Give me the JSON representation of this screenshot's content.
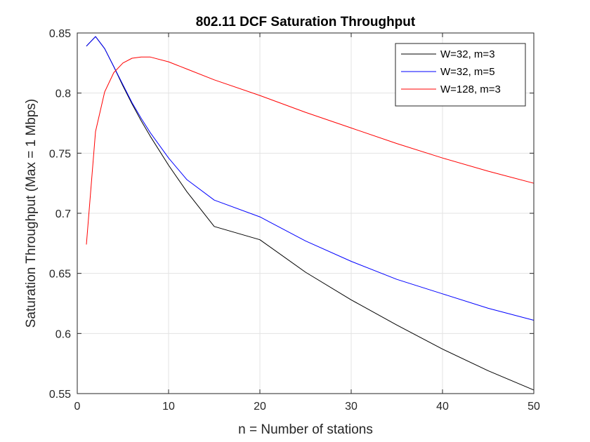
{
  "chart_data": {
    "type": "line",
    "title": "802.11 DCF Saturation Throughput",
    "xlabel": "n = Number of stations",
    "ylabel": "Saturation Throughput (Max = 1 Mbps)",
    "xlim": [
      0,
      50
    ],
    "ylim": [
      0.55,
      0.85
    ],
    "xticks": [
      "0",
      "10",
      "20",
      "30",
      "40",
      "50"
    ],
    "yticks": [
      "0.55",
      "0.6",
      "0.65",
      "0.7",
      "0.75",
      "0.8",
      "0.85"
    ],
    "grid": true,
    "legend_position": "top-right",
    "series": [
      {
        "name": "W=32, m=3",
        "color": "#000000",
        "x": [
          1,
          2,
          3,
          4,
          5,
          6,
          7,
          8,
          10,
          12,
          15,
          20,
          25,
          30,
          35,
          40,
          45,
          50
        ],
        "y": [
          0.839,
          0.847,
          0.837,
          0.822,
          0.806,
          0.791,
          0.777,
          0.764,
          0.74,
          0.718,
          0.689,
          0.678,
          0.651,
          0.628,
          0.607,
          0.587,
          0.569,
          0.553
        ]
      },
      {
        "name": "W=32, m=5",
        "color": "#0000ff",
        "x": [
          1,
          2,
          3,
          4,
          5,
          6,
          7,
          8,
          10,
          12,
          15,
          20,
          25,
          30,
          35,
          40,
          45,
          50
        ],
        "y": [
          0.839,
          0.847,
          0.837,
          0.822,
          0.807,
          0.792,
          0.779,
          0.767,
          0.746,
          0.728,
          0.711,
          0.697,
          0.677,
          0.66,
          0.645,
          0.633,
          0.621,
          0.611
        ]
      },
      {
        "name": "W=128, m=3",
        "color": "#ff0000",
        "x": [
          1,
          2,
          3,
          4,
          5,
          6,
          7,
          8,
          10,
          12,
          15,
          20,
          25,
          30,
          35,
          40,
          45,
          50
        ],
        "y": [
          0.674,
          0.768,
          0.801,
          0.817,
          0.825,
          0.829,
          0.83,
          0.83,
          0.826,
          0.82,
          0.811,
          0.798,
          0.784,
          0.771,
          0.758,
          0.746,
          0.735,
          0.725
        ]
      }
    ]
  }
}
